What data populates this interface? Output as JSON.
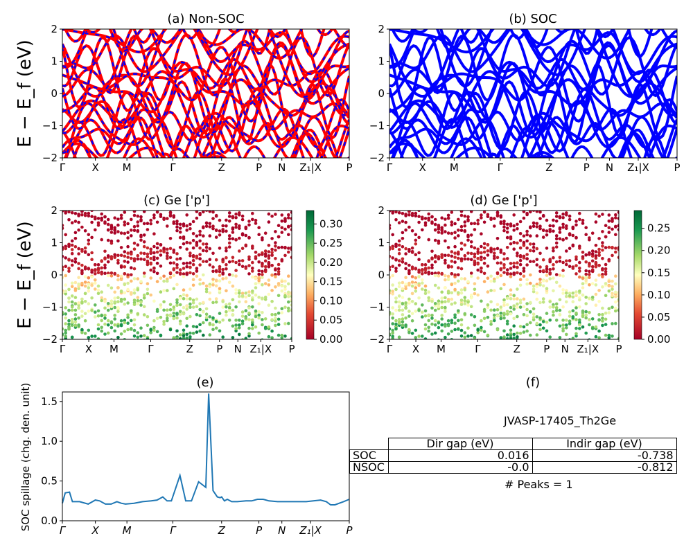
{
  "colors": {
    "nonsoc_solid": "#ff0000",
    "nonsoc_dash": "#0000ff",
    "soc": "#0000ff",
    "spillage": "#1f77b4"
  },
  "kpath_labels": [
    "Γ",
    "X",
    "M",
    "Γ",
    "Z",
    "P",
    "N",
    "Z₁|X",
    "P"
  ],
  "panels": {
    "a": {
      "title": "(a) Non-SOC"
    },
    "b": {
      "title": "(b) SOC"
    },
    "c": {
      "title": "(c)  Ge ['p']"
    },
    "d": {
      "title": "(d) Ge ['p']"
    },
    "e": {
      "title": "(e)"
    },
    "f": {
      "title": "(f)"
    }
  },
  "band_ylabel": "E − E_f (eV)",
  "spillage_ylabel": "SOC spillage (chg. den. unit)",
  "band_yticks": [
    "2",
    "1",
    "0",
    "−1",
    "−2"
  ],
  "colorbar_c_ticks": [
    "0.30",
    "0.25",
    "0.20",
    "0.15",
    "0.10",
    "0.05",
    "0.00"
  ],
  "colorbar_d_ticks": [
    "0.25",
    "0.20",
    "0.15",
    "0.10",
    "0.05",
    "0.00"
  ],
  "spillage_yticks": [
    "1.5",
    "1.0",
    "0.5",
    "0.0"
  ],
  "table": {
    "title": "JVASP-17405_Th2Ge",
    "headers": [
      "",
      "Dir gap (eV)",
      "Indir gap (eV)"
    ],
    "rows": [
      {
        "label": "SOC",
        "dir": "0.016",
        "indir": "-0.738"
      },
      {
        "label": "NSOC",
        "dir": "-0.0",
        "indir": "-0.812"
      }
    ],
    "peaks": "# Peaks = 1"
  },
  "chart_data": [
    {
      "type": "line",
      "panel": "a",
      "title": "(a) Non-SOC",
      "ylabel": "E − E_f (eV)",
      "ylim": [
        -2,
        2
      ],
      "xtick_labels": [
        "Γ",
        "X",
        "M",
        "Γ",
        "Z",
        "P",
        "N",
        "Z₁|X",
        "P"
      ],
      "series": [
        {
          "style": "red solid with blue dashes"
        }
      ]
    },
    {
      "type": "line",
      "panel": "b",
      "title": "(b) SOC",
      "ylim": [
        -2,
        2
      ],
      "xtick_labels": [
        "Γ",
        "X",
        "M",
        "Γ",
        "Z",
        "P",
        "N",
        "Z₁|X",
        "P"
      ],
      "series": [
        {
          "style": "blue"
        }
      ]
    },
    {
      "type": "scatter",
      "panel": "c",
      "title": "(c)  Ge ['p']",
      "ylabel": "E − E_f (eV)",
      "ylim": [
        -2,
        2
      ],
      "colorbar": {
        "cmap": "RdYlGn",
        "range": [
          0,
          0.33
        ]
      }
    },
    {
      "type": "scatter",
      "panel": "d",
      "title": "(d) Ge ['p']",
      "ylim": [
        -2,
        2
      ],
      "colorbar": {
        "cmap": "RdYlGn",
        "range": [
          0,
          0.29
        ]
      }
    },
    {
      "type": "line",
      "panel": "e",
      "title": "(e)",
      "ylabel": "SOC spillage (chg. den. unit)",
      "ylim": [
        0,
        1.62
      ],
      "xtick_labels": [
        "Γ",
        "X",
        "M",
        "Γ",
        "Z",
        "P",
        "N",
        "Z₁|X",
        "P"
      ],
      "k": [
        0,
        0.01,
        0.025,
        0.035,
        0.045,
        0.06,
        0.09,
        0.115,
        0.13,
        0.15,
        0.17,
        0.19,
        0.205,
        0.22,
        0.25,
        0.28,
        0.31,
        0.33,
        0.35,
        0.365,
        0.38,
        0.41,
        0.43,
        0.45,
        0.475,
        0.5,
        0.51,
        0.525,
        0.54,
        0.55,
        0.555,
        0.565,
        0.575,
        0.59,
        0.61,
        0.64,
        0.66,
        0.68,
        0.7,
        0.72,
        0.75,
        0.8,
        0.85,
        0.9,
        0.92,
        0.935,
        0.95,
        0.98,
        1.0
      ],
      "values": [
        0.22,
        0.35,
        0.36,
        0.24,
        0.24,
        0.24,
        0.21,
        0.26,
        0.25,
        0.21,
        0.21,
        0.24,
        0.22,
        0.21,
        0.22,
        0.24,
        0.25,
        0.26,
        0.3,
        0.25,
        0.25,
        0.57,
        0.25,
        0.25,
        0.49,
        0.42,
        1.6,
        0.38,
        0.3,
        0.29,
        0.3,
        0.25,
        0.27,
        0.24,
        0.24,
        0.25,
        0.25,
        0.27,
        0.27,
        0.25,
        0.24,
        0.24,
        0.24,
        0.26,
        0.24,
        0.2,
        0.2,
        0.24,
        0.27
      ]
    }
  ]
}
